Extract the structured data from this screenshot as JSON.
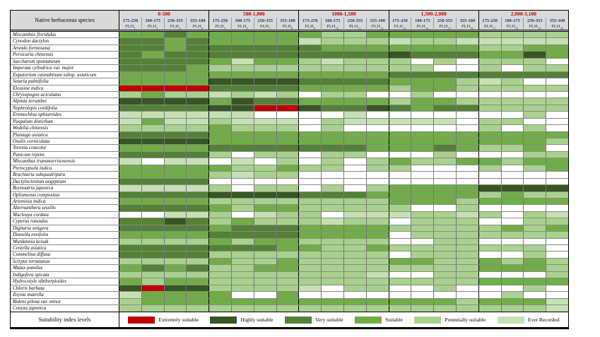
{
  "header": {
    "species_col": "Native herbaceous species",
    "plh_prefix": "PLH",
    "range_labels": [
      "175-250",
      "100-175",
      "250-355",
      "355-100"
    ],
    "groups": [
      {
        "label": "0-500",
        "plh_start": 1
      },
      {
        "label": "500-1,000",
        "plh_start": 5
      },
      {
        "label": "1000-1,500",
        "plh_start": 9
      },
      {
        "label": "1,500-2,000",
        "plh_start": 13
      },
      {
        "label": "2,000-3,100",
        "plh_start": 17
      }
    ]
  },
  "legend": {
    "label": "Suitability index levels",
    "items": [
      {
        "code": "E",
        "label": "Extremely suitable",
        "color": "#C00000"
      },
      {
        "code": "H",
        "label": "Highly suitable",
        "color": "#375623"
      },
      {
        "code": "V",
        "label": "Very suitable",
        "color": "#538135"
      },
      {
        "code": "S",
        "label": "Suitable",
        "color": "#70AD47"
      },
      {
        "code": "P",
        "label": "Potentially suitable",
        "color": "#A9D18E"
      },
      {
        "code": "R",
        "label": "Ever Recorded",
        "color": "#C6E0B4"
      }
    ]
  },
  "colors": {
    "header_bg": "#D9D9D9",
    "group_label_text": "#C00000",
    "column_label_text": "#1F3864",
    "empty_cell": "#FFFFFF",
    "thin_grid_line": "#7F7F7F",
    "heavy_line": "#000000"
  },
  "chart_data": {
    "type": "heatmap",
    "row_axis_label": "Native herbaceous species",
    "column_groups": [
      "0-500",
      "500-1,000",
      "1000-1,500",
      "1,500-2,000",
      "2,000-3,100"
    ],
    "column_ranges_per_group": [
      "175-250",
      "100-175",
      "250-355",
      "355-100"
    ],
    "columns": [
      "PLH1",
      "PLH2",
      "PLH3",
      "PLH4",
      "PLH5",
      "PLH6",
      "PLH7",
      "PLH8",
      "PLH9",
      "PLH10",
      "PLH11",
      "PLH12",
      "PLH13",
      "PLH14",
      "PLH15",
      "PLH16",
      "PLH17",
      "PLH18",
      "PLH19",
      "PLH20"
    ],
    "code_legend": {
      "E": "Extremely suitable",
      "H": "Highly suitable",
      "V": "Very suitable",
      "S": "Suitable",
      "P": "Potentially suitable",
      "R": "Ever Recorded",
      "W": "blank"
    },
    "rows": [
      {
        "species": "Miscanthus floridulus",
        "values": "SSVSSSSSSPPSSSSSPPPP"
      },
      {
        "species": "Cynodon dactylon",
        "values": "VVSVSSSSRPPPRPPRRRRR"
      },
      {
        "species": "Arundo formosana",
        "values": "VVSVVVVVVSSSSSSSPPSS"
      },
      {
        "species": "Persicaria chinensis",
        "values": "VSVVVVVVVVVVHVVVSSHS"
      },
      {
        "species": "Saccharum spontaneum",
        "values": "VVVVSRSSPRPPPWPWPPPW"
      },
      {
        "species": "Imperata cylindrica var. major",
        "values": "VVVSPPPPPPPPPPWWPWPP"
      },
      {
        "species": "Eupatorium cannabinum subsp. asiaticum",
        "values": "SSSSSSSSSSSSVVVVVVVV"
      },
      {
        "species": "Setaria palmifolia",
        "values": "SSSSHHHHVVVVSSSPRPWW"
      },
      {
        "species": "Eleusine indica",
        "values": "EEEEVVVVSSSSPSSPPPPP"
      },
      {
        "species": "Chrysopogon aciculatus",
        "values": "PSPPRPRPWPPWWPWWWWWW"
      },
      {
        "species": "Alpinia zerumbet",
        "values": "HHHHSHVVSSSSPSSPPPPP"
      },
      {
        "species": "Nephrolepis cordifolia",
        "values": "VVVVHHEEHVVHVSVVPPPP"
      },
      {
        "species": "Eremochloa ophiuroides",
        "values": "RRRRRRWWWWRWWWWWWWPW"
      },
      {
        "species": "Paspalum distichum",
        "values": "RSRRPRRRWPRRRRRWPPWW"
      },
      {
        "species": "Wedelia chinensis",
        "values": "PPPPSPPPWPWWWWWWPWPW"
      },
      {
        "species": "Plantago asiatica",
        "values": "VVVVSSSSSSSSSSSSSSSS"
      },
      {
        "species": "Oxalis corniculata",
        "values": "HHHHSSSSSSSSSSSSSSSP"
      },
      {
        "species": "Torenia concolor",
        "values": "SSSSVVVVVVVSSSVSPPSW"
      },
      {
        "species": "Panicum repens",
        "values": "VVVVPWPPWPPWWWPWWWPP"
      },
      {
        "species": "Miscanthus transmorrisonensis",
        "values": "RWRRWRWPWPWPSPPSSPSS"
      },
      {
        "species": "Pterocypsela indica",
        "values": "SSSSSPPSPPWPPWWWPWPS"
      },
      {
        "species": "Brachiaria subquadripara",
        "values": "SSSSPRPPWWWWWWWWWWWW"
      },
      {
        "species": "Dactyloctenium aegyptium",
        "values": "VVVVWWWWWWWWWWWWWWWW"
      },
      {
        "species": "Reynoutria japonica",
        "values": "RRRRPWPPWPWPSSSSHHHH"
      },
      {
        "species": "Oplismenus compositus",
        "values": "VVVVHHHHVVVSSSSSPSPP"
      },
      {
        "species": "Artemisia indica",
        "values": "SSSSPPPPPPPPSSSPSSSS"
      },
      {
        "species": "Alternanthera sessilis",
        "values": "VVVVSPSSPPPPPWWPWWWW"
      },
      {
        "species": "Macleaya cordata",
        "values": "WWRRPWRPPWRRRPPRPWPR"
      },
      {
        "species": "Cyperus rotundus",
        "values": "VVHVPSPPPRPPWPPPWWPP"
      },
      {
        "species": "Digitaria setigera",
        "values": "VVVVSVVVSSSSPPPPPSPS"
      },
      {
        "species": "Dianella ensifolia",
        "values": "SSSSVVVVSSSSWPPPPPPP"
      },
      {
        "species": "Murdannia keisak",
        "values": "PPPPSPSSPPPPWWPPWWWW"
      },
      {
        "species": "Centella asiatica",
        "values": "VVVVVVVSSPPSPPPPPPPW"
      },
      {
        "species": "Commelina diffusa",
        "values": "VVVVPPPPPPPPWPPPWWPW"
      },
      {
        "species": "Scirpus ternatanus",
        "values": "PPPPSPPSPPPPSSPPSPSP"
      },
      {
        "species": "Mazus pumilus",
        "values": "SVSVPPSSPPPPPPPPSSSP"
      },
      {
        "species": "Indigofera spicata",
        "values": "PPPPPPPPPPPRWWPPWWWP"
      },
      {
        "species": "Hydrocotyle sibthorpioides",
        "values": "SPSSPPPPPPPPPPPPSSSS"
      },
      {
        "species": "Chloris barbata",
        "values": "HEHHPPPPRWPPWWPWWWPW"
      },
      {
        "species": "Zoysia matrella",
        "values": "RSSSSWWSWWWWWWWWWPWW"
      },
      {
        "species": "Bidens pilosa var. minor",
        "values": "PSSSSSSSSSSSSSSPSSSR"
      },
      {
        "species": "Conyza japonica",
        "values": "PPPPPPPPPPPPPPPPPPPR"
      }
    ]
  }
}
